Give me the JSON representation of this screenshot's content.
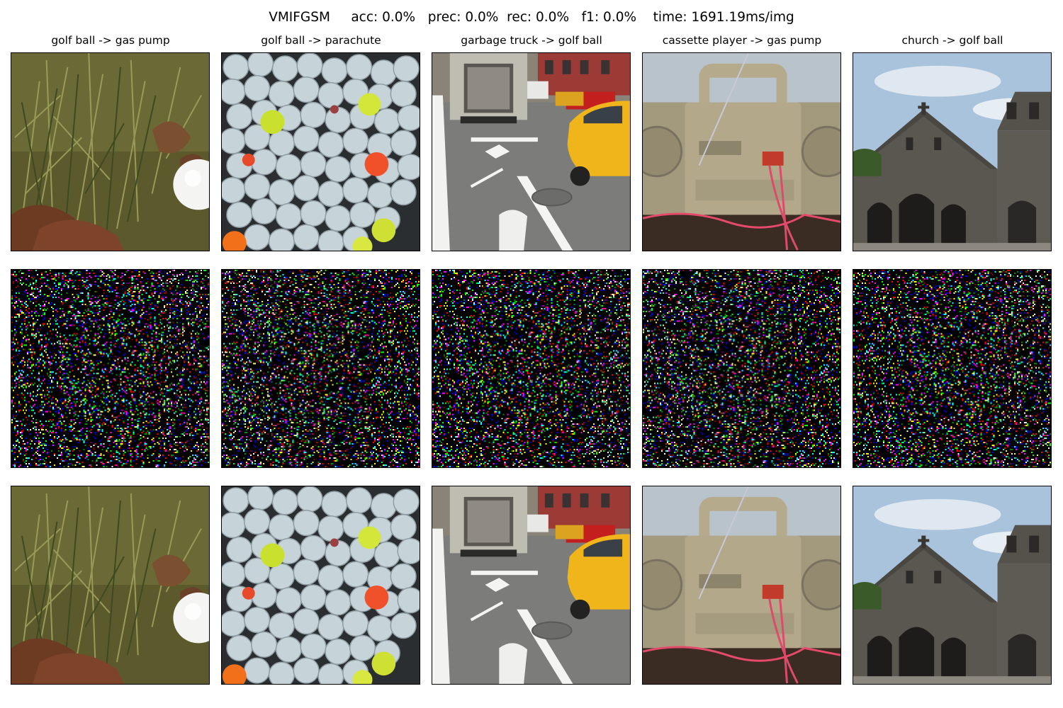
{
  "figure": {
    "suptitle": "VMIFGSM     acc: 0.0%   prec: 0.0%  rec: 0.0%   f1: 0.0%    time: 1691.19ms/img",
    "columns": [
      {
        "title": "golf ball -> gas pump",
        "scene": "golf-ball-in-grass"
      },
      {
        "title": "golf ball -> parachute",
        "scene": "pile-of-golf-balls"
      },
      {
        "title": "garbage truck -> golf ball",
        "scene": "city-street-garbage-truck"
      },
      {
        "title": "cassette player -> gas pump",
        "scene": "boombox-cassette-player"
      },
      {
        "title": "church -> golf ball",
        "scene": "stone-church"
      }
    ],
    "rows": [
      "original",
      "perturbation",
      "adversarial"
    ]
  }
}
